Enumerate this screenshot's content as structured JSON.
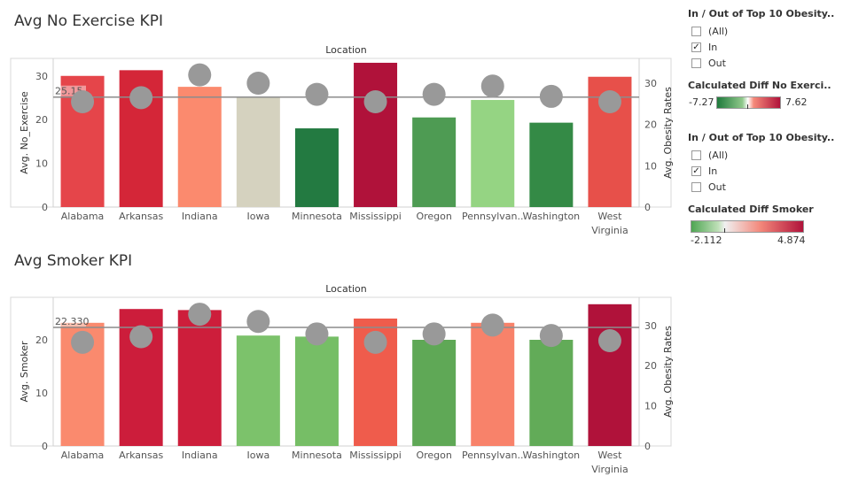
{
  "chart_data": [
    {
      "type": "bar",
      "title": "Avg No Exercise KPI",
      "header": "Location",
      "ylabel": "Avg. No_Exercise",
      "y2label": "Avg. Obesity Rates",
      "ylim": [
        0,
        34
      ],
      "yticks": [
        0,
        10,
        20,
        30
      ],
      "y2lim": [
        0,
        36
      ],
      "y2ticks": [
        0,
        10,
        20,
        30
      ],
      "reference_line": {
        "value": 25.15,
        "label": "25.15"
      },
      "categories": [
        "Alabama",
        "Arkansas",
        "Indiana",
        "Iowa",
        "Minnesota",
        "Mississippi",
        "Oregon",
        "Pennsylvan..",
        "Washington",
        "West Virginia"
      ],
      "series": [
        {
          "values": [
            30.0,
            31.3,
            27.5,
            25.3,
            18.0,
            33.0,
            20.5,
            24.5,
            19.3,
            29.8
          ]
        },
        {
          "values": [
            25.5,
            26.5,
            32.0,
            30.0,
            27.3,
            25.5,
            27.3,
            29.3,
            26.8,
            25.5
          ]
        }
      ],
      "colors": [
        "#e5454a",
        "#d42638",
        "#fb8a6e",
        "#d5d2bf",
        "#237a41",
        "#b0123a",
        "#4e9b53",
        "#95d483",
        "#348a46",
        "#e7504a"
      ],
      "grid": false,
      "legend": "none"
    },
    {
      "type": "bar",
      "title": "Avg Smoker KPI",
      "header": "Location",
      "ylabel": "Avg. Smoker",
      "y2label": "Avg. Obesity Rates",
      "ylim": [
        0,
        28
      ],
      "yticks": [
        0,
        10,
        20
      ],
      "y2lim": [
        0,
        37
      ],
      "y2ticks": [
        0,
        10,
        20,
        30
      ],
      "reference_line": {
        "value": 22.33,
        "label": "22.330"
      },
      "categories": [
        "Alabama",
        "Arkansas",
        "Indiana",
        "Iowa",
        "Minnesota",
        "Mississippi",
        "Oregon",
        "Pennsylvan..",
        "Washington",
        "West Virginia"
      ],
      "series": [
        {
          "values": [
            23.2,
            25.8,
            25.6,
            20.8,
            20.6,
            24.0,
            20.0,
            23.2,
            20.0,
            26.7
          ]
        },
        {
          "values": [
            25.8,
            27.2,
            32.8,
            31.0,
            27.9,
            25.8,
            27.9,
            30.1,
            27.5,
            26.2
          ]
        }
      ],
      "colors": [
        "#fa8a6e",
        "#cc1d3b",
        "#cd1e3b",
        "#7cc26b",
        "#76be66",
        "#ef5c4c",
        "#5fa856",
        "#f8826a",
        "#62ab58",
        "#b0123a"
      ],
      "grid": false,
      "legend": "none"
    }
  ],
  "sidebar": {
    "filter1": {
      "title": "In / Out of Top 10 Obesity..",
      "options": [
        {
          "label": "(All)",
          "checked": false
        },
        {
          "label": "In",
          "checked": true
        },
        {
          "label": "Out",
          "checked": false
        }
      ]
    },
    "legend1": {
      "title": "Calculated Diff No Exerci..",
      "min": "-7.27",
      "max": "7.62",
      "low_color": "#1f7a3c",
      "mid_color": "#ffffff",
      "high_color": "#b0123a"
    },
    "filter2": {
      "title": "In / Out of Top 10 Obesity..",
      "options": [
        {
          "label": "(All)",
          "checked": false
        },
        {
          "label": "In",
          "checked": true
        },
        {
          "label": "Out",
          "checked": false
        }
      ]
    },
    "legend2": {
      "title": "Calculated Diff Smoker",
      "min": "-2.112",
      "max": "4.874",
      "low_color": "#4fa553",
      "mid_color": "#f0f0f0",
      "high_color": "#b0123a"
    }
  }
}
